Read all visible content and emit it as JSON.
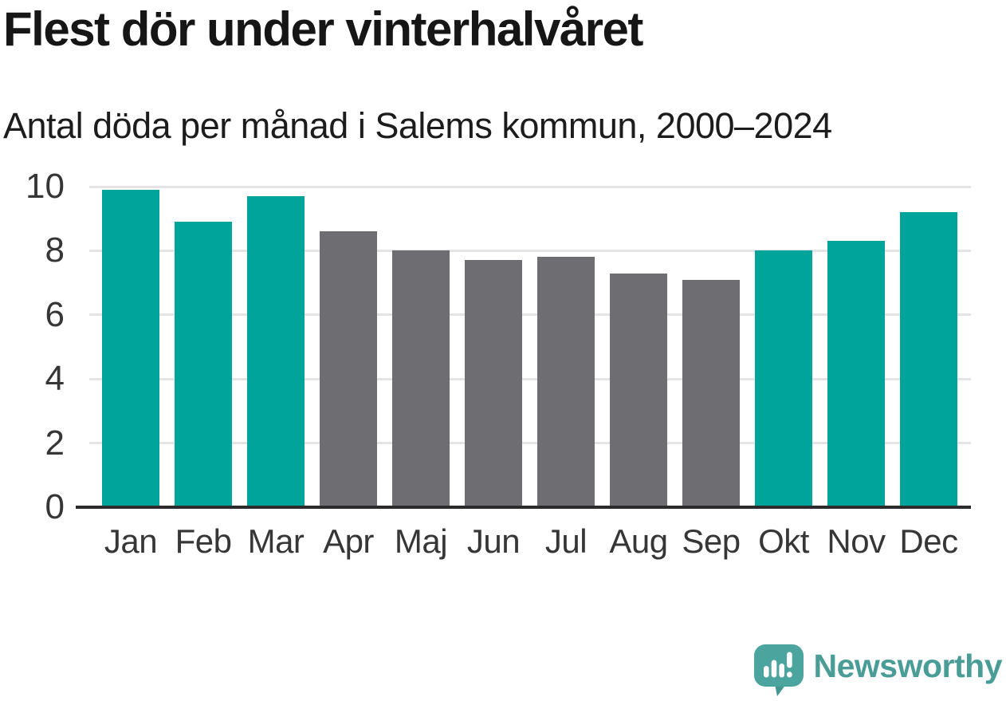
{
  "header": {
    "title": "Flest dör under vinterhalvåret",
    "subtitle": "Antal döda per månad i Salems kommun, 2000–2024"
  },
  "chart_data": {
    "type": "bar",
    "title": "Flest dör under vinterhalvåret",
    "subtitle": "Antal döda per månad i Salems kommun, 2000–2024",
    "categories": [
      "Jan",
      "Feb",
      "Mar",
      "Apr",
      "Maj",
      "Jun",
      "Jul",
      "Aug",
      "Sep",
      "Okt",
      "Nov",
      "Dec"
    ],
    "values": [
      9.9,
      8.9,
      9.7,
      8.6,
      8.0,
      7.7,
      7.8,
      7.3,
      7.1,
      8.0,
      8.3,
      9.2
    ],
    "bar_groups": [
      "winter",
      "winter",
      "winter",
      "summer",
      "summer",
      "summer",
      "summer",
      "summer",
      "summer",
      "winter",
      "winter",
      "winter"
    ],
    "colors": {
      "winter": "#00a49a",
      "summer": "#6d6d72"
    },
    "xlabel": "",
    "ylabel": "",
    "ylim": [
      0,
      10
    ],
    "yticks": [
      0,
      2,
      4,
      6,
      8,
      10
    ],
    "grid": true,
    "legend_position": "none"
  },
  "footer": {
    "brand": "Newsworthy",
    "brand_color": "#4a9d97",
    "logo_icon": "newsworthy-speech-bubble-bar-chart-icon",
    "logo_colors": {
      "bubble": "#4ba49d",
      "tail": "#43968f",
      "glyphs": "#ffffff"
    }
  }
}
